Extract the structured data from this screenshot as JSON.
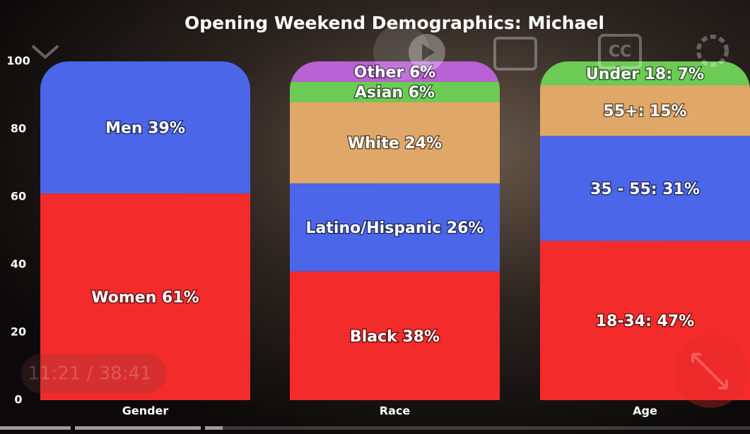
{
  "chart_data": {
    "type": "stacked-bar",
    "title": "Opening Weekend Demographics: Michael",
    "ylim": [
      0,
      100
    ],
    "yticks": [
      0,
      20,
      40,
      60,
      80,
      100
    ],
    "stacks": [
      {
        "category": "Gender",
        "segments": [
          {
            "label": "Women 61%",
            "value": 61,
            "color": "#f42b2b"
          },
          {
            "label": "Men 39%",
            "value": 39,
            "color": "#4c66e9"
          }
        ]
      },
      {
        "category": "Race",
        "segments": [
          {
            "label": "Black 38%",
            "value": 38,
            "color": "#f42b2b"
          },
          {
            "label": "Latino/Hispanic 26%",
            "value": 26,
            "color": "#4c66e9"
          },
          {
            "label": "White 24%",
            "value": 24,
            "color": "#e0a868"
          },
          {
            "label": "Asian 6%",
            "value": 6,
            "color": "#6ccb55"
          },
          {
            "label": "Other 6%",
            "value": 6,
            "color": "#b862d6"
          }
        ]
      },
      {
        "category": "Age",
        "segments": [
          {
            "label": "18-34: 47%",
            "value": 47,
            "color": "#f42b2b"
          },
          {
            "label": "35 - 55: 31%",
            "value": 31,
            "color": "#4c66e9"
          },
          {
            "label": "55+: 15%",
            "value": 15,
            "color": "#e0a868"
          },
          {
            "label": "Under 18: 7%",
            "value": 7,
            "color": "#6ccb55"
          }
        ]
      }
    ]
  },
  "player": {
    "time": "11:21 / 38:41",
    "cc": "CC"
  }
}
